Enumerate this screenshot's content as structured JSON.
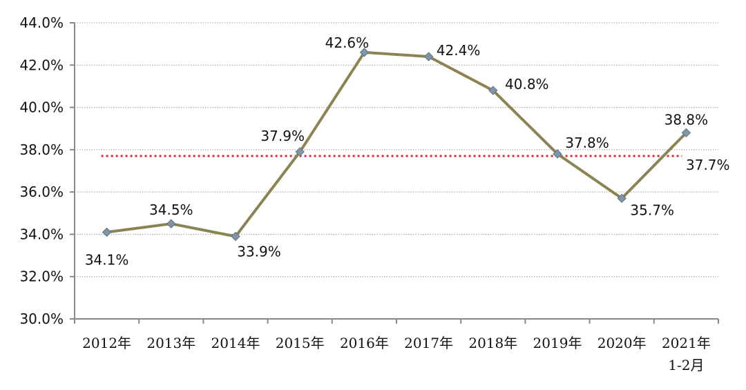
{
  "chart_data": {
    "type": "line",
    "categories": [
      "2012年",
      "2013年",
      "2014年",
      "2015年",
      "2016年",
      "2017年",
      "2018年",
      "2019年",
      "2020年",
      "2021年\n1-2月"
    ],
    "series": [
      {
        "values": [
          34.1,
          34.5,
          33.9,
          37.9,
          42.6,
          42.4,
          40.8,
          37.8,
          35.7,
          38.8
        ]
      }
    ],
    "data_labels": [
      "34.1%",
      "34.5%",
      "33.9%",
      "37.9%",
      "42.6%",
      "42.4%",
      "40.8%",
      "37.8%",
      "35.7%",
      "38.8%"
    ],
    "reference_line": {
      "value": 37.7,
      "label": "37.7%"
    },
    "y_ticks": [
      "30.0%",
      "32.0%",
      "34.0%",
      "36.0%",
      "38.0%",
      "40.0%",
      "42.0%",
      "44.0%"
    ],
    "ylim": [
      30,
      44
    ],
    "grid": true,
    "colors": {
      "line": "#8B8452",
      "marker": "#7F95A8",
      "reference": "#E8232B",
      "grid": "#999999",
      "axis": "#888888"
    }
  }
}
